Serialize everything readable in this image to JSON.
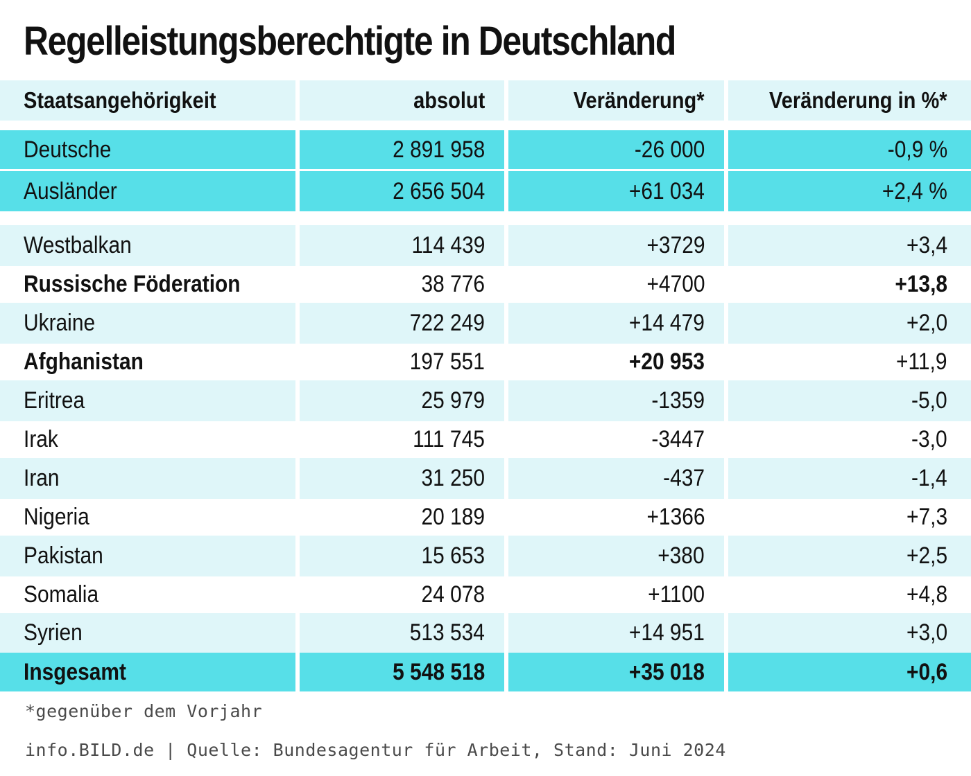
{
  "title": "Regelleistungsberechtigte in Deutschland",
  "header": {
    "col0": "Staatsangehörigkeit",
    "col1": "absolut",
    "col2": "Veränderung*",
    "col3": "Veränderung in %*"
  },
  "rows": [
    {
      "name": "Deutsche",
      "absolut": "2 891 958",
      "change": "-26 000",
      "pct": "-0,9 %",
      "style": "strong"
    },
    {
      "name": "Ausländer",
      "absolut": "2 656 504",
      "change": "+61 034",
      "pct": "+2,4 %",
      "style": "strong"
    },
    {
      "name": "Westbalkan",
      "absolut": "114 439",
      "change": "+3729",
      "pct": "+3,4",
      "style": "light"
    },
    {
      "name": "Russische Föderation",
      "absolut": "38 776",
      "change": "+4700",
      "pct": "+13,8",
      "style": "white",
      "bold": [
        "name",
        "pct"
      ]
    },
    {
      "name": "Ukraine",
      "absolut": "722 249",
      "change": "+14 479",
      "pct": "+2,0",
      "style": "light"
    },
    {
      "name": "Afghanistan",
      "absolut": "197 551",
      "change": "+20 953",
      "pct": "+11,9",
      "style": "white",
      "bold": [
        "name",
        "change"
      ]
    },
    {
      "name": "Eritrea",
      "absolut": "25 979",
      "change": "-1359",
      "pct": "-5,0",
      "style": "light"
    },
    {
      "name": "Irak",
      "absolut": "111 745",
      "change": "-3447",
      "pct": "-3,0",
      "style": "white"
    },
    {
      "name": "Iran",
      "absolut": "31 250",
      "change": "-437",
      "pct": "-1,4",
      "style": "light"
    },
    {
      "name": "Nigeria",
      "absolut": "20 189",
      "change": "+1366",
      "pct": "+7,3",
      "style": "white"
    },
    {
      "name": "Pakistan",
      "absolut": "15 653",
      "change": "+380",
      "pct": "+2,5",
      "style": "light"
    },
    {
      "name": "Somalia",
      "absolut": "24 078",
      "change": "+1100",
      "pct": "+4,8",
      "style": "white"
    },
    {
      "name": "Syrien",
      "absolut": "513 534",
      "change": "+14 951",
      "pct": "+3,0",
      "style": "light"
    },
    {
      "name": "Insgesamt",
      "absolut": "5 548 518",
      "change": "+35 018",
      "pct": "+0,6",
      "style": "strong",
      "bold": [
        "name",
        "absolut",
        "change",
        "pct"
      ]
    }
  ],
  "footnote": "*gegenüber dem Vorjahr",
  "source": "info.BILD.de | Quelle: Bundesagentur für Arbeit, Stand: Juni 2024",
  "colors": {
    "header_bg": "#dff6f9",
    "light_row_bg": "#dff6f9",
    "strong_row_bg": "#57dfe8",
    "text": "#111111"
  }
}
